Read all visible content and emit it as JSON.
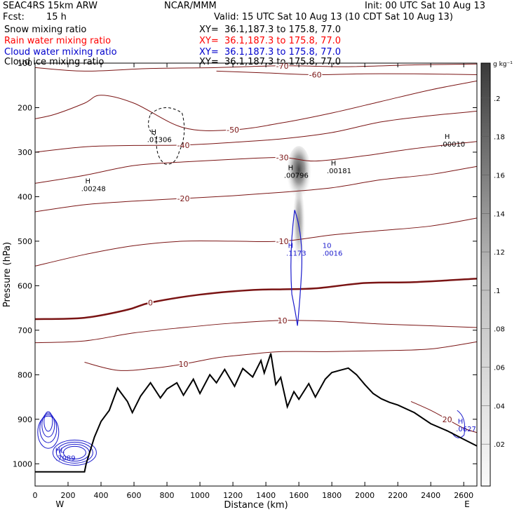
{
  "header": {
    "title_left": "SEAC4RS 15km ARW",
    "title_center": "NCAR/MMM",
    "init": "Init: 00 UTC Sat 10 Aug 13",
    "fcst_label": "Fcst:",
    "fcst_value": "15 h",
    "valid": "Valid: 15 UTC Sat 10 Aug 13 (10 CDT Sat 10 Aug 13)"
  },
  "fields": [
    {
      "name": "Snow mixing ratio",
      "xy": "XY=  36.1,187.3 to 175.8, 77.0",
      "color": "#000000"
    },
    {
      "name": "Rain water mixing ratio",
      "xy": "XY=  36.1,187.3 to 175.8, 77.0",
      "color": "#ff0000"
    },
    {
      "name": "Cloud water mixing ratio",
      "xy": "XY=  36.1,187.3 to 175.8, 77.0",
      "color": "#0000cc"
    },
    {
      "name": "Cloud ice mixing ratio",
      "xy": "XY=  36.1,187.3 to 175.8, 77.0",
      "color": "#000000"
    }
  ],
  "colorbar": {
    "unit": "g kg⁻¹",
    "ticks": [
      ".2",
      ".18",
      ".16",
      ".14",
      ".12",
      ".1",
      ".08",
      ".06",
      ".04",
      ".02"
    ]
  },
  "chart_data": {
    "type": "heatmap",
    "xlabel": "Distance (km)",
    "ylabel": "Pressure (hPa)",
    "xlim": [
      0,
      2680
    ],
    "ylim": [
      1050,
      100
    ],
    "x_ticks": [
      "0",
      "200",
      "400",
      "600",
      "800",
      "1000",
      "1200",
      "1400",
      "1600",
      "1800",
      "2000",
      "2200",
      "2400",
      "2600"
    ],
    "x_tick_values": [
      0,
      200,
      400,
      600,
      800,
      1000,
      1200,
      1400,
      1600,
      1800,
      2000,
      2200,
      2400,
      2600
    ],
    "y_ticks": [
      "100",
      "200",
      "300",
      "400",
      "500",
      "600",
      "700",
      "800",
      "900",
      "1000"
    ],
    "y_tick_values": [
      100,
      200,
      300,
      400,
      500,
      600,
      700,
      800,
      900,
      1000
    ],
    "x_end_labels": {
      "left": "W",
      "right": "E"
    },
    "temperature_contours": [
      {
        "label": "-70",
        "points": [
          [
            0,
            110
          ],
          [
            300,
            118
          ],
          [
            700,
            112
          ],
          [
            1100,
            110
          ],
          [
            1500,
            106
          ],
          [
            1900,
            108
          ],
          [
            2300,
            104
          ],
          [
            2680,
            102
          ]
        ]
      },
      {
        "label": "-60",
        "points": [
          [
            1100,
            118
          ],
          [
            1400,
            122
          ],
          [
            1700,
            126
          ],
          [
            2000,
            124
          ],
          [
            2300,
            124
          ],
          [
            2680,
            126
          ]
        ]
      },
      {
        "label": "-50",
        "points": [
          [
            0,
            225
          ],
          [
            120,
            215
          ],
          [
            300,
            190
          ],
          [
            400,
            172
          ],
          [
            600,
            190
          ],
          [
            900,
            245
          ],
          [
            1200,
            250
          ],
          [
            1500,
            234
          ],
          [
            1800,
            212
          ],
          [
            2100,
            186
          ],
          [
            2400,
            160
          ],
          [
            2680,
            140
          ]
        ]
      },
      {
        "label": "-40",
        "points": [
          [
            0,
            300
          ],
          [
            300,
            288
          ],
          [
            600,
            285
          ],
          [
            900,
            284
          ],
          [
            1200,
            278
          ],
          [
            1500,
            270
          ],
          [
            1800,
            256
          ],
          [
            2100,
            232
          ],
          [
            2400,
            218
          ],
          [
            2680,
            208
          ]
        ]
      },
      {
        "label": "-30",
        "points": [
          [
            0,
            370
          ],
          [
            300,
            352
          ],
          [
            600,
            330
          ],
          [
            900,
            322
          ],
          [
            1200,
            316
          ],
          [
            1500,
            312
          ],
          [
            1700,
            320
          ],
          [
            2000,
            308
          ],
          [
            2300,
            292
          ],
          [
            2680,
            276
          ]
        ]
      },
      {
        "label": "-20",
        "points": [
          [
            0,
            434
          ],
          [
            300,
            418
          ],
          [
            600,
            410
          ],
          [
            900,
            404
          ],
          [
            1200,
            398
          ],
          [
            1500,
            390
          ],
          [
            1800,
            380
          ],
          [
            2100,
            362
          ],
          [
            2400,
            350
          ],
          [
            2680,
            332
          ]
        ]
      },
      {
        "label": "-10",
        "points": [
          [
            0,
            556
          ],
          [
            300,
            530
          ],
          [
            600,
            510
          ],
          [
            900,
            500
          ],
          [
            1200,
            500
          ],
          [
            1500,
            500
          ],
          [
            1800,
            486
          ],
          [
            2100,
            476
          ],
          [
            2400,
            466
          ],
          [
            2680,
            448
          ]
        ]
      },
      {
        "label": "0",
        "emphasis": true,
        "points": [
          [
            0,
            675
          ],
          [
            300,
            672
          ],
          [
            560,
            654
          ],
          [
            700,
            638
          ],
          [
            1000,
            620
          ],
          [
            1300,
            610
          ],
          [
            1500,
            608
          ],
          [
            1700,
            606
          ],
          [
            2000,
            594
          ],
          [
            2300,
            592
          ],
          [
            2680,
            584
          ]
        ]
      },
      {
        "label": "10",
        "points": [
          [
            0,
            728
          ],
          [
            300,
            724
          ],
          [
            600,
            706
          ],
          [
            900,
            694
          ],
          [
            1200,
            684
          ],
          [
            1500,
            678
          ],
          [
            1800,
            680
          ],
          [
            2100,
            686
          ],
          [
            2400,
            690
          ],
          [
            2680,
            694
          ]
        ]
      },
      {
        "label": "10",
        "points": [
          [
            300,
            772
          ],
          [
            500,
            790
          ],
          [
            700,
            786
          ],
          [
            900,
            776
          ],
          [
            1100,
            762
          ],
          [
            1300,
            754
          ],
          [
            1500,
            748
          ],
          [
            1800,
            748
          ],
          [
            2100,
            746
          ],
          [
            2400,
            742
          ],
          [
            2680,
            726
          ]
        ]
      },
      {
        "label": "20",
        "points": [
          [
            2280,
            860
          ],
          [
            2400,
            880
          ],
          [
            2500,
            900
          ],
          [
            2600,
            920
          ],
          [
            2680,
            930
          ]
        ]
      }
    ],
    "terrain": [
      [
        0,
        1018
      ],
      [
        300,
        1018
      ],
      [
        310,
        1000
      ],
      [
        360,
        940
      ],
      [
        400,
        905
      ],
      [
        450,
        880
      ],
      [
        500,
        830
      ],
      [
        560,
        860
      ],
      [
        590,
        885
      ],
      [
        640,
        848
      ],
      [
        700,
        818
      ],
      [
        760,
        852
      ],
      [
        800,
        832
      ],
      [
        860,
        818
      ],
      [
        900,
        846
      ],
      [
        960,
        810
      ],
      [
        1000,
        842
      ],
      [
        1060,
        800
      ],
      [
        1100,
        818
      ],
      [
        1150,
        788
      ],
      [
        1210,
        826
      ],
      [
        1260,
        786
      ],
      [
        1320,
        805
      ],
      [
        1370,
        768
      ],
      [
        1390,
        796
      ],
      [
        1430,
        752
      ],
      [
        1460,
        822
      ],
      [
        1490,
        806
      ],
      [
        1530,
        872
      ],
      [
        1570,
        838
      ],
      [
        1600,
        855
      ],
      [
        1660,
        820
      ],
      [
        1700,
        850
      ],
      [
        1760,
        810
      ],
      [
        1800,
        795
      ],
      [
        1850,
        790
      ],
      [
        1900,
        785
      ],
      [
        1950,
        800
      ],
      [
        2000,
        822
      ],
      [
        2050,
        842
      ],
      [
        2100,
        854
      ],
      [
        2150,
        862
      ],
      [
        2200,
        868
      ],
      [
        2300,
        885
      ],
      [
        2400,
        910
      ],
      [
        2500,
        926
      ],
      [
        2600,
        945
      ],
      [
        2680,
        960
      ]
    ],
    "shaded_max": {
      "x": 1600,
      "p": 365,
      "label": ".00796"
    },
    "extrema_labels": [
      {
        "x": 320,
        "p": 370,
        "marker": "H",
        "value": ".00248"
      },
      {
        "x": 720,
        "p": 260,
        "marker": "H",
        "value": ".01306"
      },
      {
        "x": 1550,
        "p": 340,
        "marker": "H",
        "value": ".00796"
      },
      {
        "x": 1810,
        "p": 330,
        "marker": "H",
        "value": ".00181"
      },
      {
        "x": 2500,
        "p": 270,
        "marker": "H",
        "value": ".00010"
      },
      {
        "x": 1550,
        "p": 515,
        "marker": "H",
        "value": ".1173",
        "color": "blue"
      },
      {
        "x": 1770,
        "p": 515,
        "marker": "10",
        "value": ".0016",
        "color": "blue"
      },
      {
        "x": 2580,
        "p": 910,
        "marker": "H",
        "value": ".0627",
        "color": "blue"
      },
      {
        "x": 150,
        "p": 975,
        "marker": "HL",
        "value": ".7089",
        "color": "blue"
      }
    ]
  }
}
